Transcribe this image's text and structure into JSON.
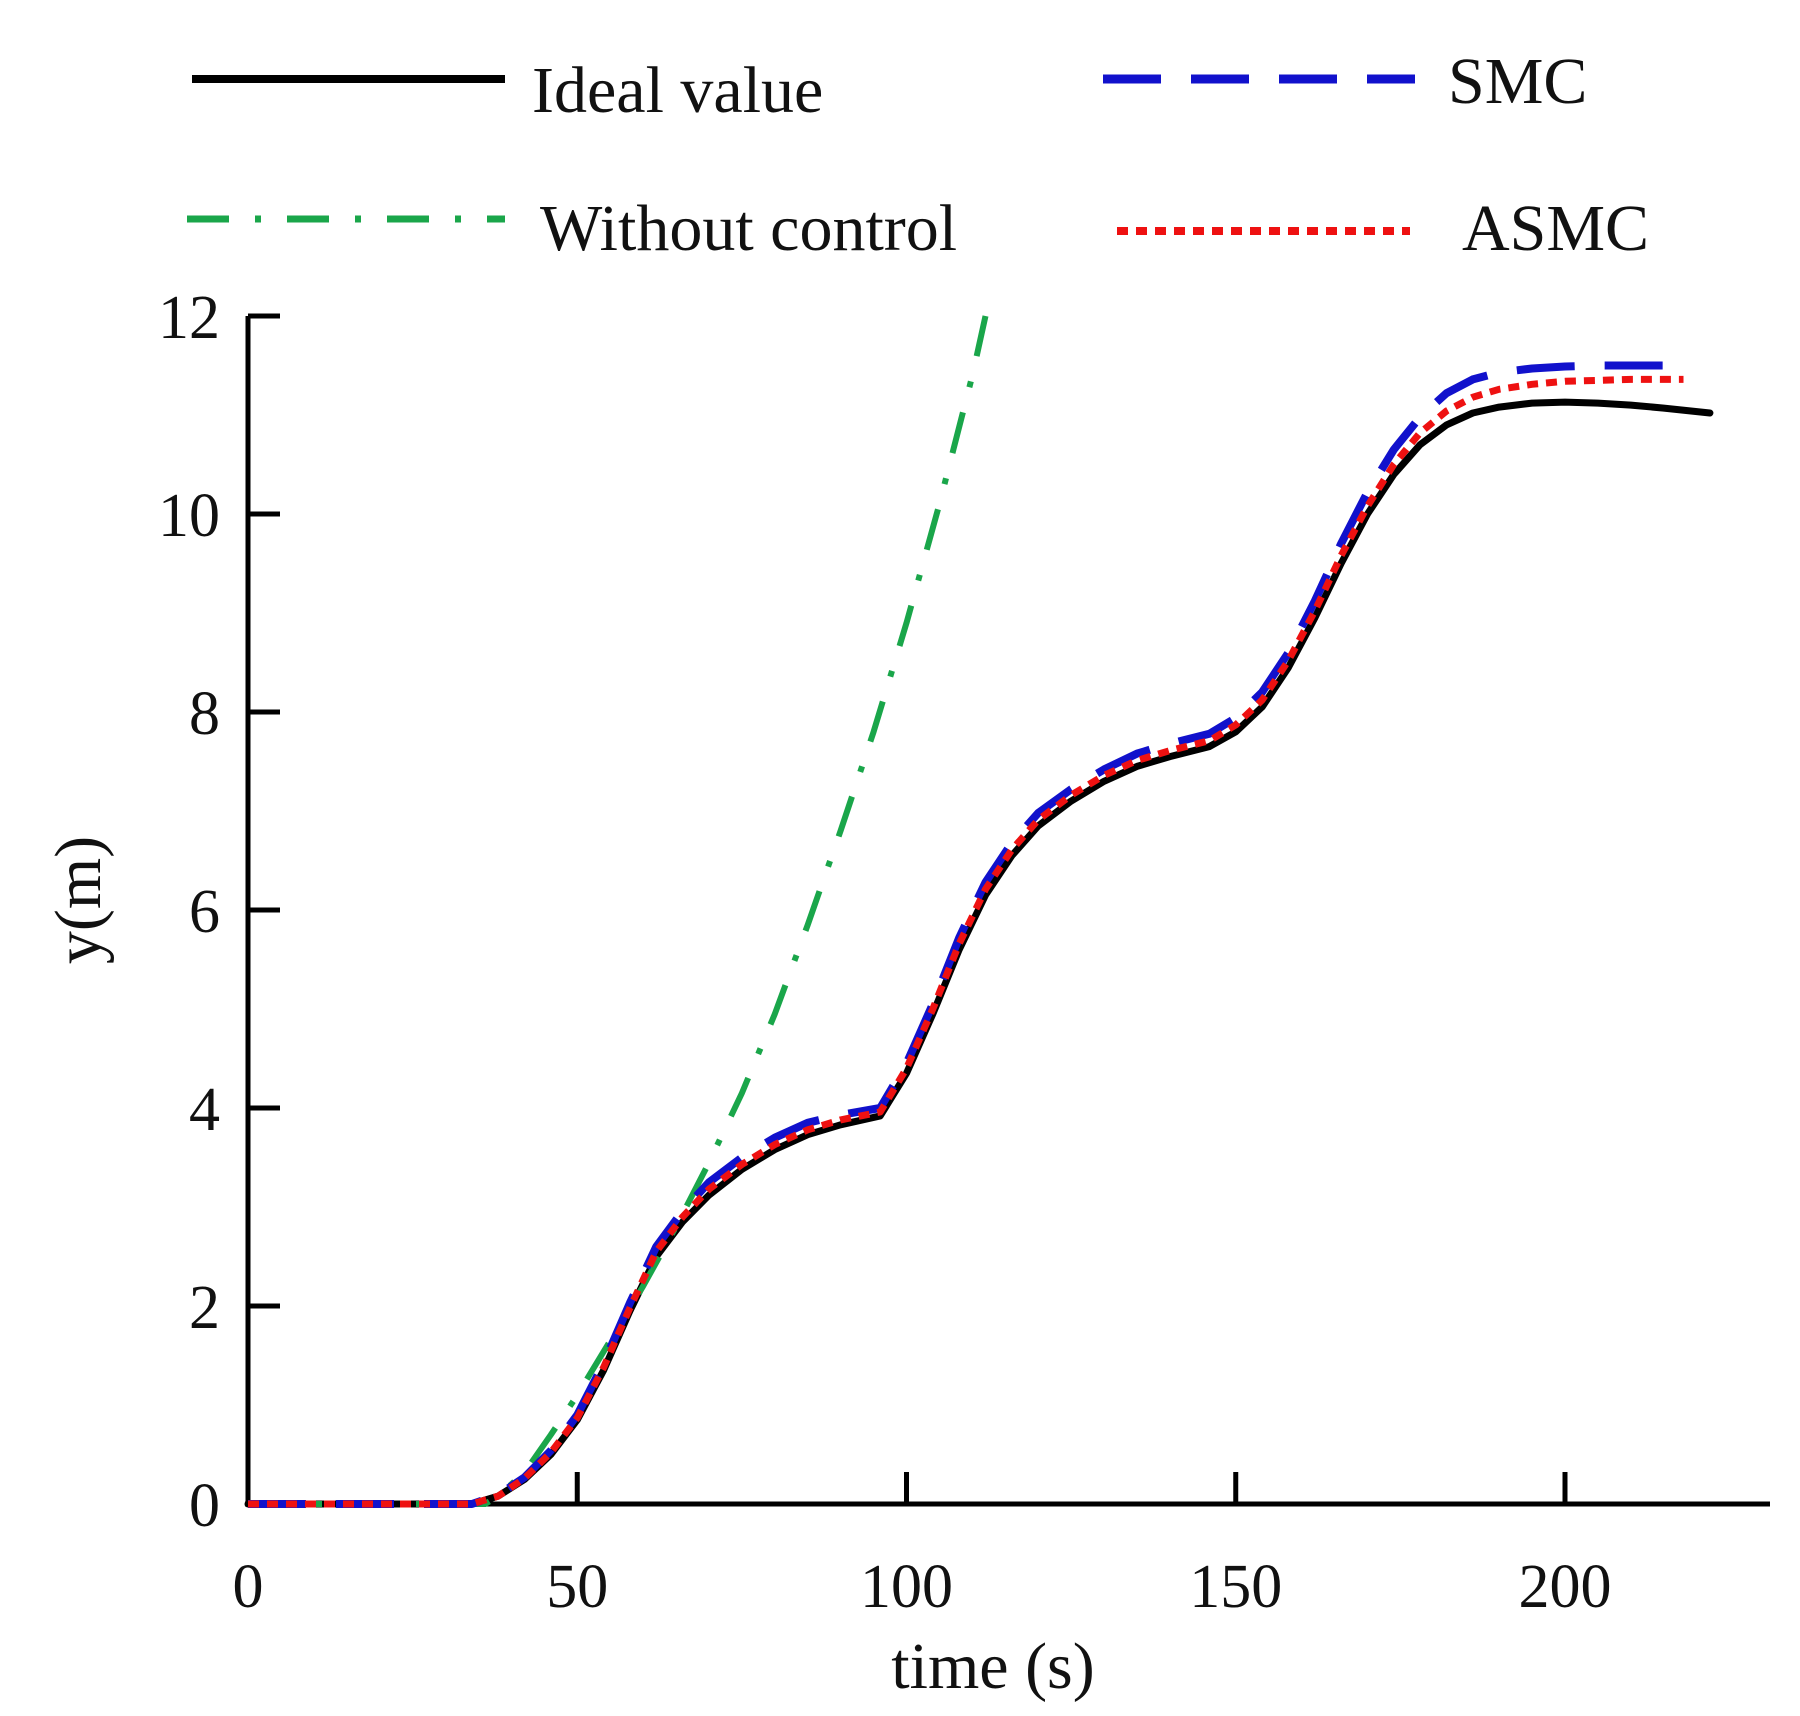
{
  "chart_data": {
    "type": "line",
    "title": "",
    "xlabel": "time (s)",
    "ylabel": "y(m)",
    "xlim": [
      0,
      232
    ],
    "ylim": [
      0,
      12
    ],
    "xticks": [
      0,
      50,
      100,
      150,
      200
    ],
    "yticks": [
      0,
      2,
      4,
      6,
      8,
      10,
      12
    ],
    "grid": false,
    "legend_position": "top",
    "series": [
      {
        "name": "Ideal value",
        "color": "#000000",
        "style": "solid",
        "x": [
          0,
          10,
          20,
          30,
          34,
          38,
          42,
          46,
          50,
          54,
          58,
          62,
          66,
          70,
          75,
          80,
          85,
          90,
          96,
          100,
          104,
          108,
          112,
          116,
          120,
          125,
          130,
          135,
          140,
          146,
          150,
          154,
          158,
          162,
          166,
          170,
          174,
          178,
          182,
          186,
          190,
          195,
          200,
          205,
          210,
          215,
          222
        ],
        "y": [
          0,
          0,
          0,
          0,
          0.0,
          0.08,
          0.25,
          0.5,
          0.85,
          1.35,
          1.95,
          2.5,
          2.85,
          3.12,
          3.38,
          3.58,
          3.73,
          3.83,
          3.92,
          4.35,
          4.95,
          5.6,
          6.15,
          6.55,
          6.85,
          7.1,
          7.3,
          7.45,
          7.55,
          7.65,
          7.8,
          8.05,
          8.45,
          8.95,
          9.5,
          10.0,
          10.4,
          10.7,
          10.9,
          11.02,
          11.08,
          11.12,
          11.13,
          11.12,
          11.1,
          11.07,
          11.02
        ]
      },
      {
        "name": "SMC",
        "color": "#1111cc",
        "style": "dashed",
        "x": [
          0,
          10,
          20,
          30,
          34,
          38,
          42,
          46,
          50,
          54,
          58,
          62,
          66,
          70,
          75,
          80,
          85,
          90,
          96,
          100,
          104,
          108,
          112,
          116,
          120,
          125,
          130,
          135,
          140,
          146,
          150,
          154,
          158,
          162,
          166,
          170,
          174,
          178,
          182,
          186,
          190,
          195,
          200,
          205,
          210,
          218
        ],
        "y": [
          0,
          0,
          0,
          0,
          0.0,
          0.09,
          0.27,
          0.54,
          0.9,
          1.42,
          2.03,
          2.6,
          2.96,
          3.25,
          3.5,
          3.7,
          3.85,
          3.93,
          4.0,
          4.45,
          5.05,
          5.72,
          6.28,
          6.68,
          6.98,
          7.22,
          7.42,
          7.58,
          7.68,
          7.78,
          7.94,
          8.2,
          8.6,
          9.12,
          9.7,
          10.22,
          10.65,
          10.98,
          11.22,
          11.36,
          11.43,
          11.47,
          11.49,
          11.5,
          11.5,
          11.5
        ]
      },
      {
        "name": "Without control",
        "color": "#1aa64a",
        "style": "dashdot",
        "x": [
          0,
          10,
          20,
          30,
          36,
          38,
          42,
          46,
          50,
          55,
          60,
          65,
          70,
          75,
          80,
          85,
          90,
          95,
          100,
          105,
          110,
          112
        ],
        "y": [
          0,
          0,
          0,
          0,
          0.0,
          0.08,
          0.32,
          0.7,
          1.1,
          1.65,
          2.2,
          2.8,
          3.45,
          4.15,
          4.95,
          5.85,
          6.8,
          7.8,
          8.9,
          10.1,
          11.4,
          12.0
        ]
      },
      {
        "name": "ASMC",
        "color": "#ee1111",
        "style": "dotted",
        "x": [
          0,
          10,
          20,
          30,
          34,
          38,
          42,
          46,
          50,
          54,
          58,
          62,
          66,
          70,
          75,
          80,
          85,
          90,
          96,
          100,
          104,
          108,
          112,
          116,
          120,
          125,
          130,
          135,
          140,
          146,
          150,
          154,
          158,
          162,
          166,
          170,
          174,
          178,
          182,
          186,
          190,
          195,
          200,
          205,
          210,
          218
        ],
        "y": [
          0,
          0,
          0,
          0,
          0.0,
          0.08,
          0.26,
          0.52,
          0.87,
          1.38,
          1.98,
          2.55,
          2.9,
          3.18,
          3.43,
          3.63,
          3.78,
          3.88,
          3.96,
          4.4,
          5.0,
          5.66,
          6.21,
          6.61,
          6.91,
          7.16,
          7.36,
          7.51,
          7.61,
          7.71,
          7.87,
          8.12,
          8.52,
          9.02,
          9.58,
          10.08,
          10.5,
          10.82,
          11.04,
          11.18,
          11.26,
          11.31,
          11.34,
          11.35,
          11.36,
          11.36
        ]
      }
    ]
  }
}
